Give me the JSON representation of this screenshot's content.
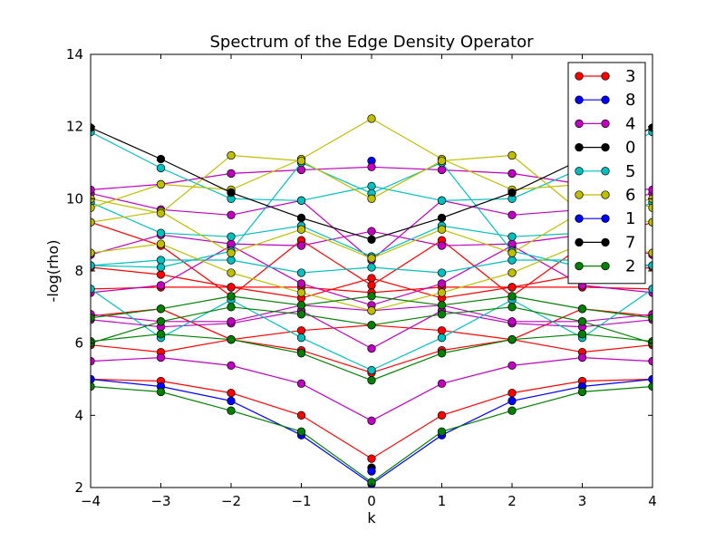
{
  "chart_data": {
    "type": "line",
    "title": "Spectrum of the Edge Density Operator",
    "xlabel": "k",
    "ylabel": "-log(rho)",
    "xlim": [
      -4,
      4
    ],
    "ylim": [
      2,
      14
    ],
    "xticks": [
      "−4",
      "−3",
      "−2",
      "−1",
      "0",
      "1",
      "2",
      "3",
      "4"
    ],
    "yticks": [
      "2",
      "4",
      "6",
      "8",
      "10",
      "12",
      "14"
    ],
    "x": [
      -4,
      -3,
      -2,
      -1,
      0,
      1,
      2,
      3,
      4
    ],
    "grid": false,
    "legend_position": "top-right",
    "legend": [
      {
        "label": "3",
        "color": "#ff0000"
      },
      {
        "label": "8",
        "color": "#0000ff"
      },
      {
        "label": "4",
        "color": "#bf00bf"
      },
      {
        "label": "0",
        "color": "#000000"
      },
      {
        "label": "5",
        "color": "#00bfbf"
      },
      {
        "label": "6",
        "color": "#bfbf00"
      },
      {
        "label": "1",
        "color": "#0000ff"
      },
      {
        "label": "7",
        "color": "#000000"
      },
      {
        "label": "2",
        "color": "#008000"
      }
    ],
    "series": [
      {
        "name": "3",
        "color": "#ff0000",
        "values": [
          5.0,
          4.95,
          4.62,
          4.0,
          2.8,
          4.0,
          4.62,
          4.95,
          5.0
        ]
      },
      {
        "name": "3",
        "color": "#ff0000",
        "values": [
          5.95,
          5.75,
          6.1,
          5.8,
          5.18,
          5.8,
          6.1,
          5.75,
          5.95
        ]
      },
      {
        "name": "3",
        "color": "#ff0000",
        "values": [
          6.75,
          6.95,
          6.1,
          6.35,
          6.5,
          6.35,
          6.1,
          6.95,
          6.75
        ]
      },
      {
        "name": "3",
        "color": "#ff0000",
        "values": [
          8.1,
          7.9,
          7.55,
          7.25,
          7.8,
          7.25,
          7.55,
          7.9,
          8.1
        ]
      },
      {
        "name": "3",
        "color": "#ff0000",
        "values": [
          9.35,
          8.7,
          7.3,
          8.85,
          7.6,
          8.85,
          7.3,
          8.7,
          9.35
        ]
      },
      {
        "name": "3",
        "color": "#ff0000",
        "values": [
          7.5,
          7.55,
          7.55,
          7.55,
          7.4,
          7.55,
          7.55,
          7.55,
          7.5
        ]
      },
      {
        "name": "8",
        "color": "#0000ff",
        "values": [
          5.0,
          4.8,
          4.4,
          3.45,
          2.1,
          3.45,
          4.4,
          4.8,
          5.0
        ]
      },
      {
        "name": "8",
        "color": "#0000ff",
        "values": [
          null,
          null,
          null,
          null,
          11.05,
          null,
          null,
          null,
          null
        ]
      },
      {
        "name": "4",
        "color": "#bf00bf",
        "values": [
          5.5,
          5.6,
          5.38,
          4.88,
          3.85,
          4.88,
          5.38,
          5.6,
          5.5
        ]
      },
      {
        "name": "4",
        "color": "#bf00bf",
        "values": [
          6.65,
          6.45,
          6.55,
          6.9,
          5.85,
          6.9,
          6.55,
          6.45,
          6.65
        ]
      },
      {
        "name": "4",
        "color": "#bf00bf",
        "values": [
          7.4,
          7.6,
          8.7,
          7.65,
          7.05,
          7.65,
          8.7,
          7.6,
          7.4
        ]
      },
      {
        "name": "4",
        "color": "#bf00bf",
        "values": [
          8.45,
          9.0,
          8.75,
          8.7,
          9.1,
          8.7,
          8.75,
          9.0,
          8.45
        ]
      },
      {
        "name": "4",
        "color": "#bf00bf",
        "values": [
          10.15,
          9.7,
          9.55,
          9.95,
          8.3,
          9.95,
          9.55,
          9.7,
          10.15
        ]
      },
      {
        "name": "4",
        "color": "#bf00bf",
        "values": [
          10.25,
          10.4,
          10.7,
          10.8,
          10.88,
          10.8,
          10.7,
          10.4,
          10.25
        ]
      },
      {
        "name": "4",
        "color": "#bf00bf",
        "values": [
          6.8,
          6.6,
          6.6,
          7.05,
          6.9,
          7.05,
          6.6,
          6.6,
          6.8
        ]
      },
      {
        "name": "0",
        "color": "#000000",
        "values": [
          null,
          null,
          null,
          null,
          2.55,
          null,
          null,
          null,
          null
        ]
      },
      {
        "name": "5",
        "color": "#00bfbf",
        "values": [
          11.85,
          10.85,
          10.0,
          9.95,
          10.35,
          9.95,
          10.0,
          10.85,
          11.85
        ]
      },
      {
        "name": "5",
        "color": "#00bfbf",
        "values": [
          9.9,
          9.05,
          8.95,
          9.25,
          8.4,
          9.25,
          8.95,
          9.05,
          9.9
        ]
      },
      {
        "name": "5",
        "color": "#00bfbf",
        "values": [
          8.15,
          8.3,
          8.3,
          7.95,
          8.1,
          7.95,
          8.3,
          8.3,
          8.15
        ]
      },
      {
        "name": "5",
        "color": "#00bfbf",
        "values": [
          7.5,
          6.15,
          7.2,
          6.15,
          5.25,
          6.15,
          7.2,
          6.15,
          7.5
        ]
      },
      {
        "name": "5",
        "color": "#00bfbf",
        "values": [
          8.15,
          8.1,
          8.55,
          11.0,
          10.15,
          11.0,
          8.55,
          8.1,
          8.15
        ]
      },
      {
        "name": "6",
        "color": "#bfbf00",
        "values": [
          9.35,
          9.65,
          8.5,
          9.15,
          8.35,
          9.15,
          8.5,
          9.65,
          9.35
        ]
      },
      {
        "name": "6",
        "color": "#bfbf00",
        "values": [
          9.75,
          10.4,
          10.25,
          11.1,
          12.22,
          11.1,
          10.25,
          10.4,
          9.75
        ]
      },
      {
        "name": "6",
        "color": "#bfbf00",
        "values": [
          8.5,
          8.75,
          7.95,
          7.4,
          6.9,
          7.4,
          7.95,
          8.75,
          8.5
        ]
      },
      {
        "name": "6",
        "color": "#bfbf00",
        "values": [
          10.0,
          9.6,
          11.2,
          11.05,
          10.0,
          11.05,
          11.2,
          9.6,
          10.0
        ]
      },
      {
        "name": "1",
        "color": "#0000ff",
        "values": [
          null,
          null,
          null,
          null,
          2.45,
          null,
          null,
          null,
          null
        ]
      },
      {
        "name": "7",
        "color": "#000000",
        "values": [
          11.97,
          11.1,
          10.17,
          9.47,
          8.87,
          9.47,
          10.17,
          11.1,
          11.97
        ]
      },
      {
        "name": "2",
        "color": "#008000",
        "values": [
          4.8,
          4.65,
          4.13,
          3.55,
          2.15,
          3.55,
          4.13,
          4.65,
          4.8
        ]
      },
      {
        "name": "2",
        "color": "#008000",
        "values": [
          6.05,
          6.25,
          6.1,
          5.72,
          4.97,
          5.72,
          6.1,
          6.25,
          6.05
        ]
      },
      {
        "name": "2",
        "color": "#008000",
        "values": [
          6.0,
          6.6,
          7.0,
          6.8,
          6.5,
          6.8,
          7.0,
          6.6,
          6.0
        ]
      },
      {
        "name": "2",
        "color": "#008000",
        "values": [
          6.7,
          6.95,
          7.3,
          7.05,
          7.3,
          7.05,
          7.3,
          6.95,
          6.7
        ]
      }
    ]
  }
}
